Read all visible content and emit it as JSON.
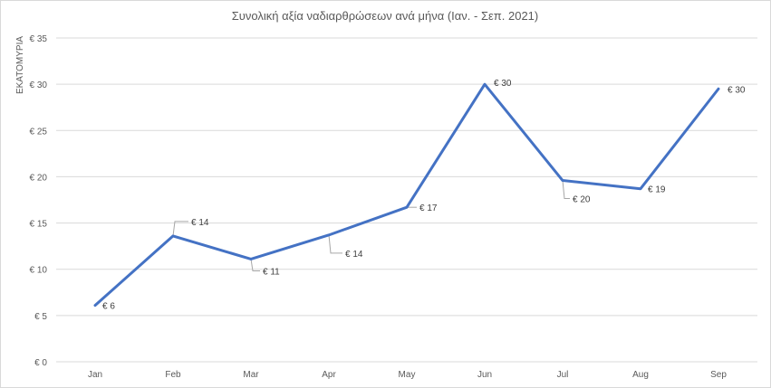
{
  "chart_data": {
    "type": "line",
    "title": "Συνολική αξία ναδιαρθρώσεων ανά μήνα (Ιαν. - Σεπ. 2021)",
    "ylabel": "ΕΚΑΤΟΜΥΡΙΑ",
    "xlabel": "",
    "categories": [
      "Jan",
      "Feb",
      "Mar",
      "Apr",
      "May",
      "Jun",
      "Jul",
      "Aug",
      "Sep"
    ],
    "series": [
      {
        "values": [
          6.1,
          13.6,
          11.1,
          13.7,
          16.7,
          30.0,
          19.6,
          18.7,
          29.5
        ],
        "data_labels": [
          "€ 6",
          "€ 14",
          "€ 11",
          "€ 14",
          "€ 17",
          "€ 30",
          "€ 20",
          "€ 19",
          "€ 30"
        ],
        "color": "#4472c4"
      }
    ],
    "ylim": [
      0,
      35
    ],
    "yticks": [
      0,
      5,
      10,
      15,
      20,
      25,
      30,
      35
    ],
    "ytick_labels": [
      "€ 0",
      "€ 5",
      "€ 10",
      "€ 15",
      "€ 20",
      "€ 25",
      "€ 30",
      "€ 35"
    ],
    "grid": true,
    "legend": "none"
  }
}
